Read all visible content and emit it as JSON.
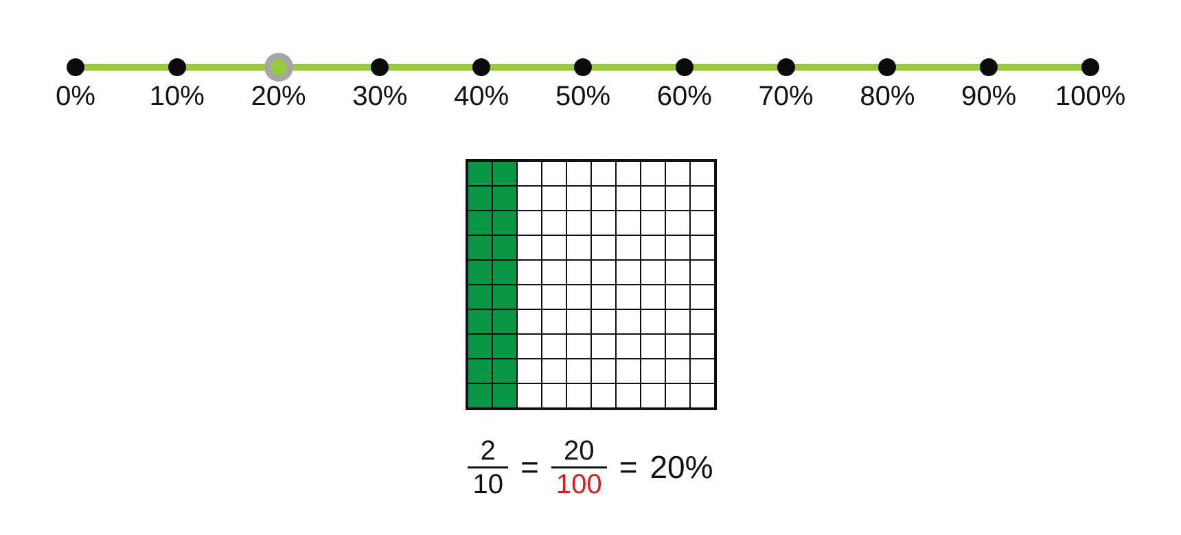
{
  "number_line": {
    "ticks": [
      {
        "label": "0%"
      },
      {
        "label": "10%"
      },
      {
        "label": "20%"
      },
      {
        "label": "30%"
      },
      {
        "label": "40%"
      },
      {
        "label": "50%"
      },
      {
        "label": "60%"
      },
      {
        "label": "70%"
      },
      {
        "label": "80%"
      },
      {
        "label": "90%"
      },
      {
        "label": "100%"
      }
    ],
    "selected_index": 2,
    "selected_label": "20%",
    "line_color": "#99C93C",
    "dot_color": "#0B0B0B",
    "handle_ring_color": "#A6A6A6",
    "handle_dot_color": "#99C93C"
  },
  "hundred_grid": {
    "rows": 10,
    "columns": 10,
    "total_cells": 100,
    "shaded_cells": 20,
    "shaded_columns": 2,
    "shaded_color": "#089646",
    "line_color": "#111111"
  },
  "equation": {
    "fraction_1": {
      "numerator": "2",
      "denominator": "10"
    },
    "equals_1": "=",
    "fraction_2": {
      "numerator": "20",
      "denominator": "100"
    },
    "equals_2": "=",
    "result": "20%",
    "highlight_color": "#D71E23"
  }
}
